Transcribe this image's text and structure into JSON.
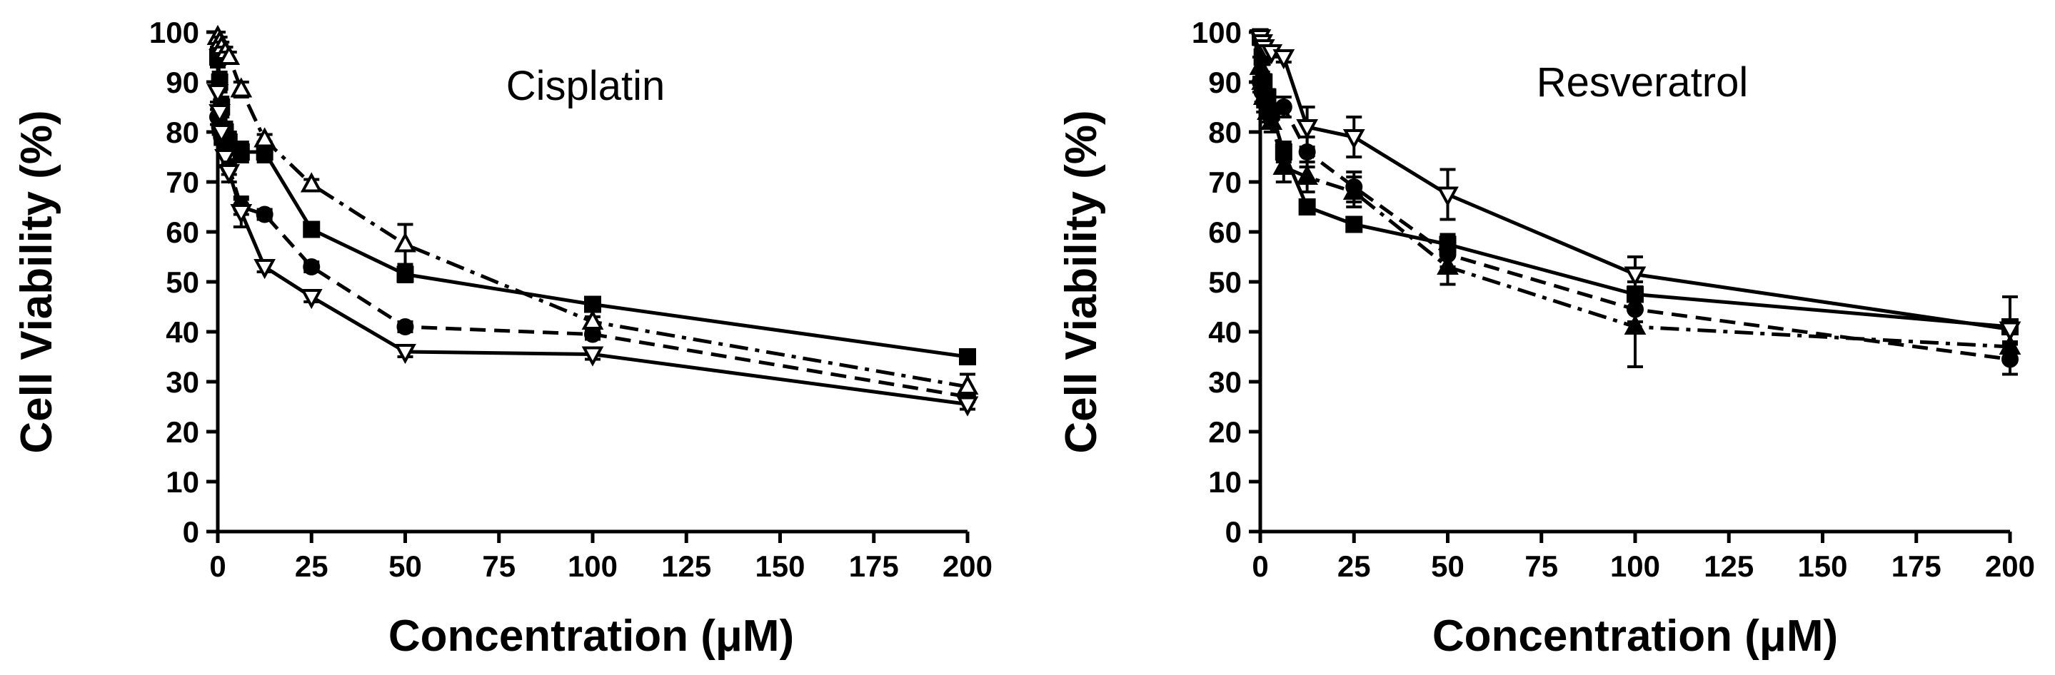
{
  "chart_data": [
    {
      "type": "line",
      "title": "Cisplatin",
      "xlabel": "Concentration (μM)",
      "ylabel": "Cell Viability (%)",
      "xlim": [
        0,
        200
      ],
      "ylim": [
        0,
        100
      ],
      "xticks": [
        "0",
        "25",
        "50",
        "75",
        "100",
        "125",
        "150",
        "175",
        "200"
      ],
      "yticks": [
        "0",
        "10",
        "20",
        "30",
        "40",
        "50",
        "60",
        "70",
        "80",
        "90",
        "100"
      ],
      "grid": false,
      "series": [
        {
          "name": "filled square, solid",
          "marker": "square",
          "filled": true,
          "dash": "solid",
          "x": [
            0,
            0.5,
            1,
            2,
            3,
            6.25,
            12.5,
            25,
            50,
            100,
            200
          ],
          "y": [
            95,
            90,
            85,
            80,
            78,
            76,
            76,
            60.5,
            51.5,
            45.5,
            35
          ],
          "err": [
            2,
            2,
            2,
            2,
            2,
            2,
            2,
            1,
            1.5,
            1,
            1
          ]
        },
        {
          "name": "filled circle, dashed",
          "marker": "circle",
          "filled": true,
          "dash": "dashed",
          "x": [
            0,
            0.5,
            1,
            2,
            3,
            6.25,
            12.5,
            25,
            50,
            100,
            200
          ],
          "y": [
            83,
            81,
            79,
            77,
            73,
            65,
            63.5,
            53,
            41,
            39.5,
            27
          ],
          "err": [
            1.5,
            1.5,
            1.5,
            1.5,
            1.5,
            1.5,
            1,
            1,
            1,
            1,
            1
          ]
        },
        {
          "name": "open triangle up, dash-dot",
          "marker": "triangle-up",
          "filled": false,
          "dash": "dashdot",
          "x": [
            0,
            0.5,
            1,
            2,
            3,
            6.25,
            12.5,
            25,
            50,
            100,
            200
          ],
          "y": [
            99,
            98,
            97,
            96,
            95,
            88.5,
            78.5,
            69.5,
            57.5,
            42,
            29
          ],
          "err": [
            1,
            1,
            1,
            1,
            1,
            1.5,
            1,
            1,
            4,
            1,
            2.5
          ]
        },
        {
          "name": "open triangle down, solid",
          "marker": "triangle-down",
          "filled": false,
          "dash": "solid",
          "x": [
            0,
            0.5,
            1,
            2,
            3,
            6.25,
            12.5,
            25,
            50,
            100,
            200
          ],
          "y": [
            88,
            84,
            80,
            75,
            72,
            64,
            53,
            47,
            36,
            35.5,
            25.5
          ],
          "err": [
            2,
            2,
            2,
            2,
            2,
            3,
            1,
            1,
            1,
            1,
            1
          ]
        }
      ]
    },
    {
      "type": "line",
      "title": "Resveratrol",
      "xlabel": "Concentration (μM)",
      "ylabel": "Cell Viability (%)",
      "xlim": [
        0,
        200
      ],
      "ylim": [
        0,
        100
      ],
      "xticks": [
        "0",
        "25",
        "50",
        "75",
        "100",
        "125",
        "150",
        "175",
        "200"
      ],
      "yticks": [
        "0",
        "10",
        "20",
        "30",
        "40",
        "50",
        "60",
        "70",
        "80",
        "90",
        "100"
      ],
      "grid": false,
      "series": [
        {
          "name": "filled square, solid",
          "marker": "square",
          "filled": true,
          "dash": "solid",
          "x": [
            0,
            0.5,
            1,
            2,
            3,
            6.25,
            12.5,
            25,
            50,
            100,
            200
          ],
          "y": [
            99,
            95,
            90,
            87,
            84,
            76,
            65,
            61.5,
            57.5,
            47.5,
            41
          ],
          "err": [
            1.5,
            1.5,
            1.5,
            1.5,
            1.5,
            2,
            1,
            1,
            2,
            2.5,
            1
          ]
        },
        {
          "name": "filled circle, dashed",
          "marker": "circle",
          "filled": true,
          "dash": "dashed",
          "x": [
            0,
            0.5,
            1,
            2,
            3,
            6.25,
            12.5,
            25,
            50,
            100,
            200
          ],
          "y": [
            90,
            88,
            86,
            84,
            83,
            85,
            76,
            69,
            55.5,
            44.5,
            34.5
          ],
          "err": [
            2,
            2,
            2,
            2,
            2,
            2,
            3,
            3,
            2.5,
            2.5,
            3
          ]
        },
        {
          "name": "filled triangle up, dash-dot",
          "marker": "triangle-up",
          "filled": true,
          "dash": "dashdot",
          "x": [
            0,
            0.5,
            1,
            2,
            3,
            6.25,
            12.5,
            25,
            50,
            100,
            200
          ],
          "y": [
            93,
            90,
            87,
            84,
            82,
            73,
            71,
            68,
            53,
            41,
            37
          ],
          "err": [
            2,
            2,
            2,
            2,
            2,
            3,
            3,
            3,
            3.5,
            8,
            1
          ]
        },
        {
          "name": "open triangle down, solid",
          "marker": "triangle-down",
          "filled": false,
          "dash": "solid",
          "x": [
            0,
            0.5,
            1,
            2,
            3,
            6.25,
            12.5,
            25,
            50,
            100,
            200
          ],
          "y": [
            99,
            98,
            97,
            96,
            96,
            95,
            81,
            79,
            67.5,
            51.5,
            40.5
          ],
          "err": [
            1,
            1,
            1,
            1,
            1,
            1,
            4,
            4,
            5,
            3.5,
            6.5
          ]
        }
      ]
    }
  ]
}
